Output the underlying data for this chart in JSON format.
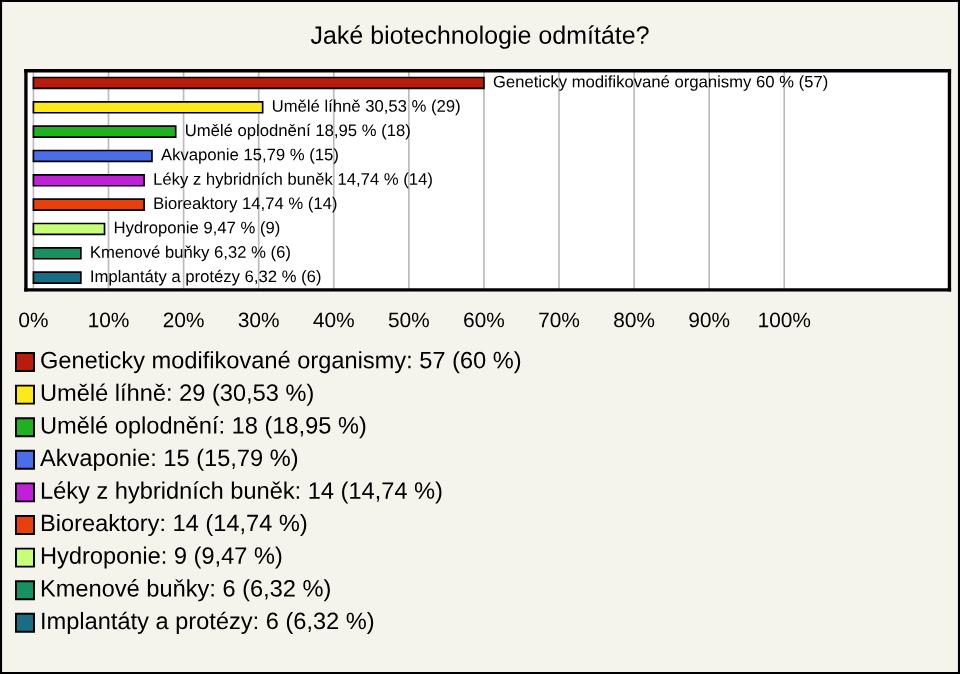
{
  "chart_data": {
    "type": "bar",
    "orientation": "horizontal",
    "title": "Jaké biotechnologie odmítáte?",
    "categories": [
      "Geneticky modifikované organismy",
      "Umělé líhně",
      "Umělé oplodnění",
      "Akvaponie",
      "Léky z hybridních buněk",
      "Bioreaktory",
      "Hydroponie",
      "Kmenové buňky",
      "Implantáty a protézy"
    ],
    "values": [
      60,
      30.53,
      18.95,
      15.79,
      14.74,
      14.74,
      9.47,
      6.32,
      6.32
    ],
    "colors": [
      "#b81c0c",
      "#ffe81a",
      "#20b020",
      "#4a6ee8",
      "#c020d8",
      "#e8400c",
      "#c8ff78",
      "#189060",
      "#1a6c84"
    ],
    "value_labels": [
      "60 % (57)",
      "30,53 % (29)",
      "18,95 % (18)",
      "15,79 % (15)",
      "14,74 % (14)",
      "14,74 % (14)",
      "9,47 % (9)",
      "6,32 % (6)",
      "6,32 % (6)"
    ],
    "xlim": [
      -1,
      122
    ],
    "xticks": [
      {
        "value": 0,
        "label": "0%"
      },
      {
        "value": 10,
        "label": "10%"
      },
      {
        "value": 20,
        "label": "20%"
      },
      {
        "value": 30,
        "label": "30%"
      },
      {
        "value": 40,
        "label": "40%"
      },
      {
        "value": 50,
        "label": "50%"
      },
      {
        "value": 60,
        "label": "60%"
      },
      {
        "value": 70,
        "label": "70%"
      },
      {
        "value": 80,
        "label": "80%"
      },
      {
        "value": 90,
        "label": "90%"
      },
      {
        "value": 100,
        "label": "100%"
      }
    ],
    "grid": "x",
    "tick_labels": "x",
    "annotations": [
      "Geneticky modifikované organismy: 57 (60 %)",
      "Umělé líhně: 29 (30,53 %)",
      "Umělé oplodnění: 18 (18,95 %)",
      "Akvaponie: 15 (15,79 %)",
      "Léky z hybridních buněk: 14 (14,74 %)",
      "Bioreaktory: 14 (14,74 %)",
      "Hydroponie: 9 (9,47 %)",
      "Kmenové buňky: 6 (6,32 %)",
      "Implantáty a protézy: 6 (6,32 %)"
    ]
  }
}
